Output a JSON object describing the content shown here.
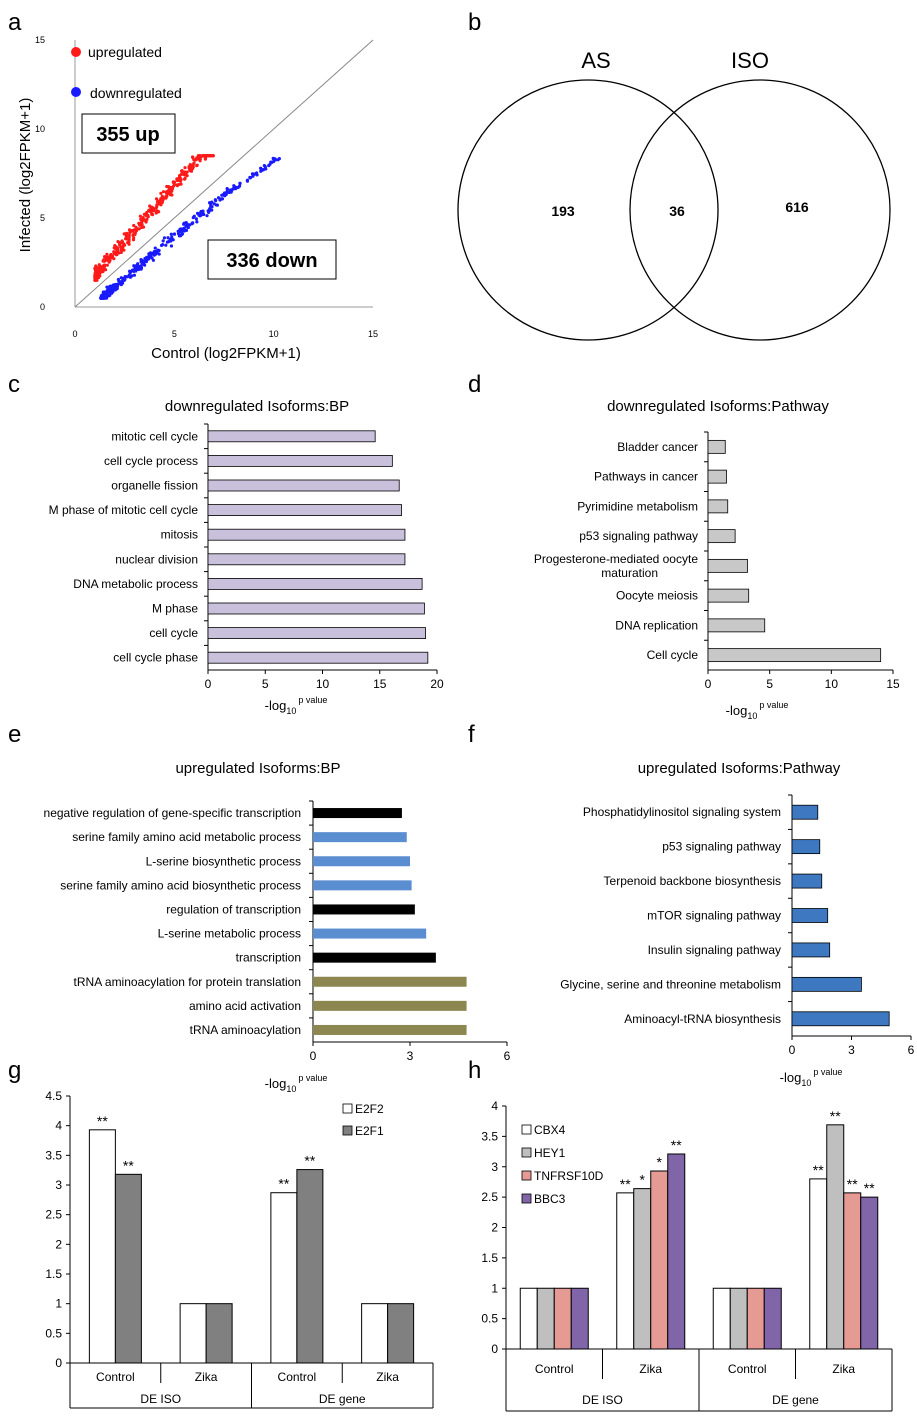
{
  "chart_data": [
    {
      "panel": "a",
      "type": "scatter",
      "xlabel": "Control (log2FPKM+1)",
      "ylabel": "Infected (log2FPKM+1)",
      "xlim": [
        0,
        15
      ],
      "ylim": [
        0,
        15
      ],
      "xticks": [
        "0",
        "5",
        "10",
        "15"
      ],
      "yticks": [
        "0",
        "5",
        "10",
        "15"
      ],
      "diagonal_line": true,
      "legend": [
        {
          "label": "upregulated",
          "color": "#ff1a1a"
        },
        {
          "label": "downregulated",
          "color": "#1a1aff"
        }
      ],
      "annotations": [
        "355 up",
        "336 down"
      ],
      "series": [
        {
          "name": "upregulated",
          "color": "#ff1a1a",
          "x_range": [
            1,
            7
          ],
          "y_range": [
            1.5,
            8.5
          ],
          "count": 355
        },
        {
          "name": "downregulated",
          "color": "#1a1aff",
          "x_range": [
            1.3,
            10.3
          ],
          "y_range": [
            0.5,
            8.5
          ],
          "count": 336
        }
      ]
    },
    {
      "panel": "b",
      "type": "venn",
      "sets": [
        "AS",
        "ISO"
      ],
      "values": {
        "AS_only": "193",
        "both": "36",
        "ISO_only": "616"
      }
    },
    {
      "panel": "c",
      "type": "bar",
      "title": "downregulated Isoforms:BP",
      "orientation": "horizontal",
      "xlabel_base": "-log",
      "xlabel_sub": "10",
      "xlabel_sup": "p value",
      "xlim": [
        0,
        20
      ],
      "xticks": [
        "0",
        "5",
        "10",
        "15",
        "20"
      ],
      "categories": [
        "mitotic cell cycle",
        "cell cycle process",
        "organelle fission",
        "M phase of mitotic cell cycle",
        "mitosis",
        "nuclear division",
        "DNA metabolic process",
        "M phase",
        "cell cycle",
        "cell cycle phase"
      ],
      "values": [
        14.6,
        16.1,
        16.7,
        16.9,
        17.2,
        17.2,
        18.7,
        18.9,
        19.0,
        19.2
      ],
      "colors": [
        "#c9c0dc"
      ]
    },
    {
      "panel": "d",
      "type": "bar",
      "title": "downregulated Isoforms:Pathway",
      "orientation": "horizontal",
      "xlabel_base": "-log",
      "xlabel_sub": "10",
      "xlabel_sup": "p value",
      "xlim": [
        0,
        15
      ],
      "xticks": [
        "0",
        "5",
        "10",
        "15"
      ],
      "categories": [
        "Bladder cancer",
        "Pathways in cancer",
        "Pyrimidine metabolism",
        "p53 signaling pathway",
        "Progesterone-mediated oocyte",
        "Oocyte meiosis",
        "DNA replication",
        "Cell cycle"
      ],
      "category_line2": [
        "",
        "",
        "",
        "",
        "maturation",
        "",
        "",
        ""
      ],
      "values": [
        1.4,
        1.5,
        1.6,
        2.2,
        3.2,
        3.3,
        4.6,
        14.0
      ],
      "colors": [
        "#c8c8c8"
      ]
    },
    {
      "panel": "e",
      "type": "bar",
      "title": "upregulated Isoforms:BP",
      "orientation": "horizontal",
      "xlabel_base": "-log",
      "xlabel_sub": "10",
      "xlabel_sup": "p value",
      "xlim": [
        0,
        6
      ],
      "xticks": [
        "0",
        "3",
        "6"
      ],
      "categories": [
        "negative regulation of gene-specific transcription",
        "serine family amino acid metabolic process",
        "L-serine biosynthetic process",
        "serine family amino acid biosynthetic process",
        "regulation of transcription",
        "L-serine metabolic process",
        "transcription",
        "tRNA aminoacylation for protein translation",
        "amino acid activation",
        "tRNA aminoacylation"
      ],
      "values": [
        2.75,
        2.9,
        3.0,
        3.05,
        3.15,
        3.5,
        3.8,
        4.75,
        4.75,
        4.75
      ],
      "colors": [
        "#000000",
        "#5b8ed0",
        "#5b8ed0",
        "#5b8ed0",
        "#000000",
        "#5b8ed0",
        "#000000",
        "#8c8750",
        "#8c8750",
        "#8c8750"
      ]
    },
    {
      "panel": "f",
      "type": "bar",
      "title": "upregulated Isoforms:Pathway",
      "orientation": "horizontal",
      "xlabel_base": "-log",
      "xlabel_sub": "10",
      "xlabel_sup": "p value",
      "xlim": [
        0,
        6
      ],
      "xticks": [
        "0",
        "3",
        "6"
      ],
      "categories": [
        "Phosphatidylinositol signaling system",
        "p53 signaling pathway",
        "Terpenoid backbone biosynthesis",
        "mTOR signaling pathway",
        "Insulin signaling pathway",
        "Glycine, serine and threonine metabolism",
        "Aminoacyl-tRNA biosynthesis"
      ],
      "values": [
        1.3,
        1.4,
        1.5,
        1.8,
        1.9,
        3.5,
        4.9
      ],
      "colors": [
        "#3d78c0"
      ]
    },
    {
      "panel": "g",
      "type": "bar",
      "ylim": [
        0,
        4.5
      ],
      "yticks": [
        "0",
        "0.5",
        "1",
        "1.5",
        "2",
        "2.5",
        "3",
        "3.5",
        "4",
        "4.5"
      ],
      "categories": [
        "Control",
        "Zika",
        "Control",
        "Zika"
      ],
      "groups": [
        "DE ISO",
        "DE gene"
      ],
      "series": [
        {
          "name": "E2F2",
          "color": "#ffffff",
          "values": [
            3.93,
            1.0,
            2.87,
            1.0
          ],
          "marks": [
            "**",
            "",
            "**",
            ""
          ]
        },
        {
          "name": "E2F1",
          "color": "#808080",
          "values": [
            3.18,
            1.0,
            3.26,
            1.0
          ],
          "marks": [
            "**",
            "",
            "**",
            ""
          ]
        }
      ]
    },
    {
      "panel": "h",
      "type": "bar",
      "ylim": [
        0,
        4
      ],
      "yticks": [
        "0",
        "0.5",
        "1",
        "1.5",
        "2",
        "2.5",
        "3",
        "3.5",
        "4"
      ],
      "categories": [
        "Control",
        "Zika",
        "Control",
        "Zika"
      ],
      "groups": [
        "DE ISO",
        "DE gene"
      ],
      "series": [
        {
          "name": "CBX4",
          "color": "#ffffff",
          "values": [
            1.0,
            2.57,
            1.0,
            2.8
          ],
          "marks": [
            "",
            "**",
            "",
            "**"
          ]
        },
        {
          "name": "HEY1",
          "color": "#bfbfbf",
          "values": [
            1.0,
            2.64,
            1.0,
            3.69
          ],
          "marks": [
            "",
            "*",
            "",
            "**"
          ]
        },
        {
          "name": "TNFRSF10D",
          "color": "#e59a94",
          "values": [
            1.0,
            2.93,
            1.0,
            2.57
          ],
          "marks": [
            "",
            "*",
            "",
            "**"
          ]
        },
        {
          "name": "BBC3",
          "color": "#8066a8",
          "values": [
            1.0,
            3.21,
            1.0,
            2.5
          ],
          "marks": [
            "",
            "**",
            "",
            "**"
          ]
        }
      ]
    }
  ],
  "panel_letters": [
    "a",
    "b",
    "c",
    "d",
    "e",
    "f",
    "g",
    "h"
  ]
}
